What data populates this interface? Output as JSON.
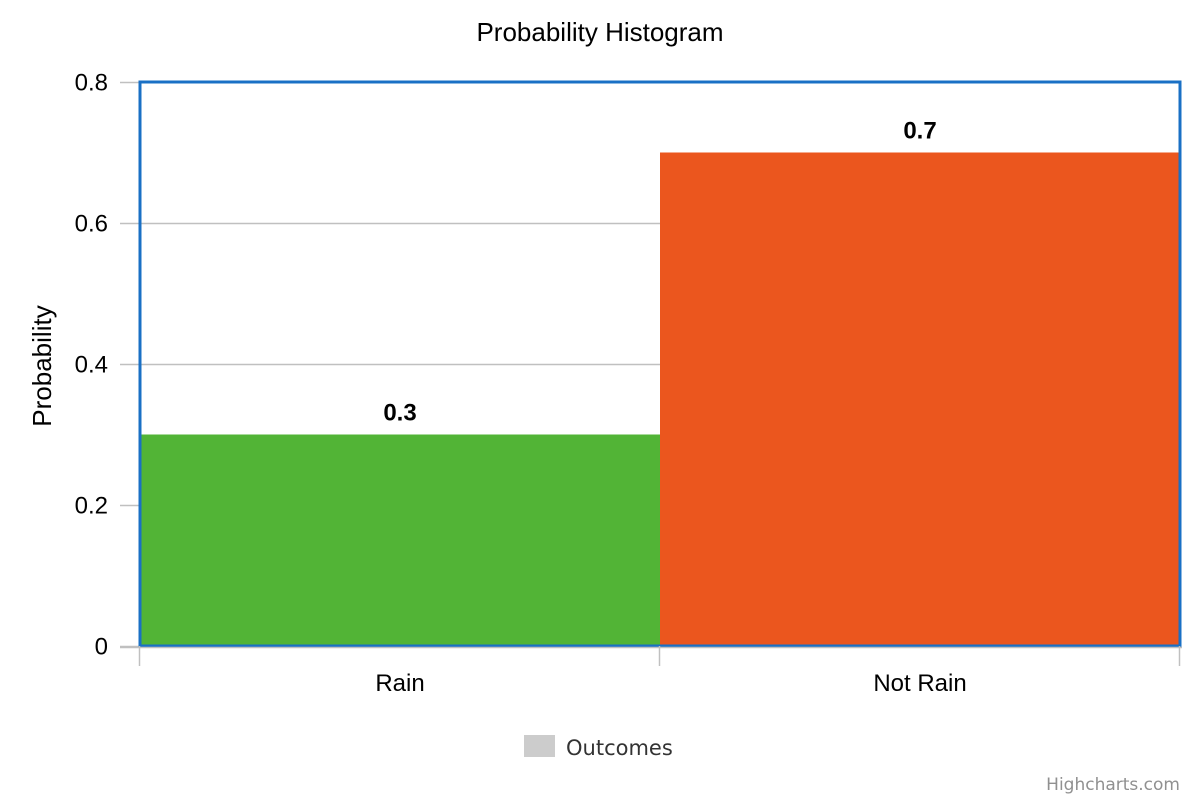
{
  "chart_data": {
    "type": "bar",
    "title": "Probability Histogram",
    "xlabel": "",
    "ylabel": "Probability",
    "categories": [
      "Rain",
      "Not Rain"
    ],
    "series": [
      {
        "name": "Outcomes",
        "values": [
          0.3,
          0.7
        ],
        "colors": [
          "#52b436",
          "#eb561e"
        ]
      }
    ],
    "data_labels": [
      "0.3",
      "0.7"
    ],
    "ylim": [
      0,
      0.8
    ],
    "yticks": [
      0,
      0.2,
      0.4,
      0.6,
      0.8
    ],
    "ytick_labels": [
      "0",
      "0.2",
      "0.4",
      "0.6",
      "0.8"
    ],
    "grid": true,
    "legend": {
      "position": "bottom-center",
      "label": "Outcomes",
      "color": "#cccccc"
    },
    "plot_border_color": "#1a70c5",
    "gridline_color": "#c0c0c0"
  },
  "credits": "Highcharts.com"
}
